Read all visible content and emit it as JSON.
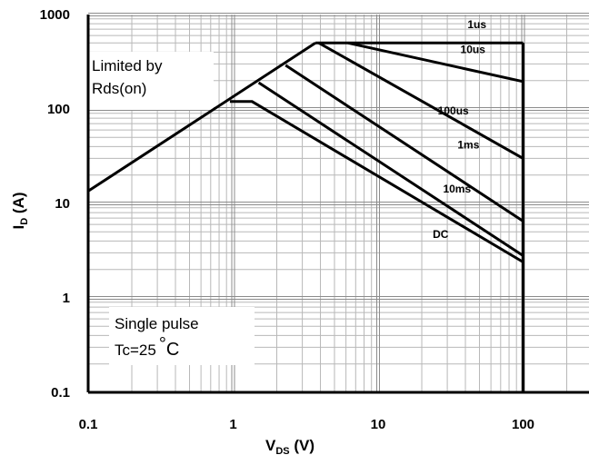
{
  "chart_data": {
    "type": "line",
    "title": "",
    "xlabel_main": "V",
    "xlabel_sub": "DS",
    "xlabel_unit": " (V)",
    "ylabel_main": "I",
    "ylabel_sub": "D",
    "ylabel_unit": " (A)",
    "x_scale": "log",
    "y_scale": "log",
    "xlim": [
      0.1,
      300
    ],
    "ylim": [
      0.1,
      1000
    ],
    "x_ticks": [
      {
        "value": 0.1,
        "label": "0.1"
      },
      {
        "value": 1,
        "label": "1"
      },
      {
        "value": 10,
        "label": "10"
      },
      {
        "value": 100,
        "label": "100"
      }
    ],
    "y_ticks": [
      {
        "value": 0.1,
        "label": "0.1"
      },
      {
        "value": 1,
        "label": "1"
      },
      {
        "value": 10,
        "label": "10"
      },
      {
        "value": 100,
        "label": "100"
      },
      {
        "value": 1000,
        "label": "1000"
      }
    ],
    "grid": true,
    "series": [
      {
        "name": "Limited by Rds(on)",
        "x": [
          0.1,
          3.7
        ],
        "y": [
          13.5,
          500
        ]
      },
      {
        "name": "1us",
        "x": [
          3.7,
          100
        ],
        "y": [
          500,
          500
        ]
      },
      {
        "name": "10us",
        "x": [
          6.2,
          100
        ],
        "y": [
          500,
          195
        ]
      },
      {
        "name": "100us",
        "x": [
          3.9,
          100
        ],
        "y": [
          500,
          30
        ]
      },
      {
        "name": "1ms",
        "x": [
          2.3,
          100
        ],
        "y": [
          290,
          6.5
        ]
      },
      {
        "name": "10ms",
        "x": [
          1.5,
          100
        ],
        "y": [
          190,
          2.8
        ]
      },
      {
        "name": "DC",
        "x": [
          0.95,
          1.35,
          100
        ],
        "y": [
          120,
          120,
          2.4
        ]
      }
    ],
    "series_labels": [
      {
        "text": "1us",
        "x": 48,
        "y": 720
      },
      {
        "text": "10us",
        "x": 45,
        "y": 390
      },
      {
        "text": "100us",
        "x": 33,
        "y": 88
      },
      {
        "text": "1ms",
        "x": 42,
        "y": 38
      },
      {
        "text": "10ms",
        "x": 35,
        "y": 13
      },
      {
        "text": "DC",
        "x": 27,
        "y": 4.3
      }
    ],
    "boundary_x": 100
  },
  "annotations": {
    "limit_line1": "Limited by",
    "limit_line2": "Rds(on)",
    "pulse_line1": "Single pulse",
    "pulse_line2_prefix": "Tc=25",
    "pulse_degree": "°",
    "pulse_unit": "C"
  },
  "colors": {
    "line": "#000000",
    "major_grid": "#8c8c8c",
    "minor_grid": "#b8b8b8",
    "background": "#ffffff"
  }
}
